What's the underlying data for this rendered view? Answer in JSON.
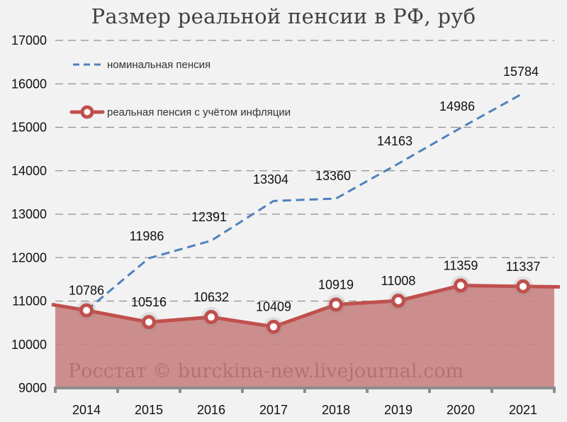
{
  "title": "Размер реальной пенсии  в РФ, руб",
  "legend": {
    "nominal": "номинальная пенсия",
    "real": "реальная пенсия с учётом инфляции"
  },
  "watermark": "Росстат © burckina-new.livejournal.com",
  "colors": {
    "background": "#f2f2f2",
    "nominal_line": "#4f81bd",
    "real_line": "#c0504d",
    "real_area": "#c98584",
    "grid": "#909090",
    "axis": "#8c8c8c"
  },
  "chart_data": {
    "type": "line",
    "title": "Размер реальной пенсии  в РФ, руб",
    "xlabel": "",
    "ylabel": "",
    "categories": [
      "2014",
      "2015",
      "2016",
      "2017",
      "2018",
      "2019",
      "2020",
      "2021"
    ],
    "series": [
      {
        "name": "номинальная пенсия",
        "style": "dashed line",
        "values": [
          10786,
          11986,
          12391,
          13304,
          13360,
          14163,
          14986,
          15784
        ]
      },
      {
        "name": "реальная пенсия с учётом инфляции",
        "style": "solid line with markers and area fill",
        "values": [
          10786,
          10516,
          10632,
          10409,
          10919,
          11008,
          11359,
          11337
        ]
      }
    ],
    "y_ticks": [
      9000,
      10000,
      11000,
      12000,
      13000,
      14000,
      15000,
      16000,
      17000
    ],
    "ylim": [
      9000,
      17000
    ],
    "grid": true,
    "legend_position": "top-left inside plot"
  }
}
